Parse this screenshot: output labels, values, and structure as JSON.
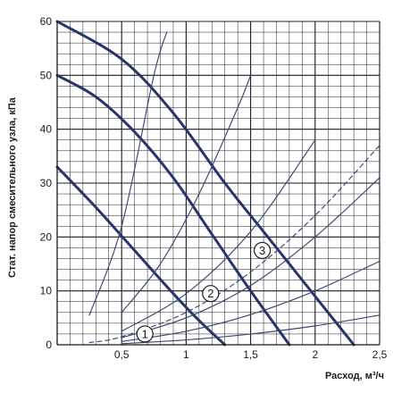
{
  "chart_data": {
    "type": "line",
    "title": "",
    "xlabel": "Расход, м³/ч",
    "ylabel": "Стат. напор смесительного узла, кПа",
    "xlim": [
      0,
      2.5
    ],
    "ylim": [
      0,
      60
    ],
    "grid": true,
    "x_ticks": [
      0.5,
      1,
      1.5,
      2,
      2.5
    ],
    "x_tick_labels": [
      "0,5",
      "1",
      "1,5",
      "2",
      "2,5"
    ],
    "y_ticks": [
      0,
      10,
      20,
      30,
      40,
      50,
      60
    ],
    "y_tick_labels": [
      "0",
      "10",
      "20",
      "30",
      "40",
      "50",
      "60"
    ],
    "series": [
      {
        "kind": "pump_curve",
        "x": [
          0,
          0.3,
          0.6,
          0.9,
          1.1,
          1.3
        ],
        "y": [
          33,
          25.5,
          17.5,
          9.5,
          4.5,
          0
        ]
      },
      {
        "kind": "pump_curve",
        "x": [
          0,
          0.3,
          0.6,
          0.9,
          1.2,
          1.5,
          1.8
        ],
        "y": [
          50,
          46,
          39.5,
          31,
          20.5,
          10,
          0
        ]
      },
      {
        "kind": "pump_curve",
        "x": [
          0,
          0.5,
          0.9,
          1.3,
          1.6,
          1.9,
          2.1,
          2.3
        ],
        "y": [
          60,
          53,
          43,
          30,
          21,
          12,
          6,
          0
        ]
      },
      {
        "kind": "system_curve",
        "dashed": false,
        "x": [
          0.25,
          0.5,
          0.75,
          0.85
        ],
        "y": [
          5.5,
          22,
          50,
          58
        ]
      },
      {
        "kind": "system_curve",
        "dashed": false,
        "x": [
          0.5,
          0.8,
          1.1,
          1.4,
          1.5
        ],
        "y": [
          6,
          15,
          28,
          44,
          50
        ]
      },
      {
        "kind": "system_curve",
        "dashed": false,
        "x": [
          0.5,
          1,
          1.5,
          2
        ],
        "y": [
          2.5,
          9.5,
          21,
          38
        ]
      },
      {
        "kind": "system_curve",
        "dashed": true,
        "x": [
          0.25,
          0.5,
          1,
          1.5,
          2,
          2.5
        ],
        "y": [
          0.4,
          1.5,
          6,
          13.5,
          24,
          37
        ]
      },
      {
        "kind": "system_curve",
        "dashed": false,
        "x": [
          0.5,
          1,
          1.5,
          2,
          2.5
        ],
        "y": [
          1.3,
          5,
          11,
          20,
          31
        ]
      },
      {
        "kind": "system_curve",
        "dashed": false,
        "x": [
          0.5,
          1,
          1.5,
          2,
          2.5
        ],
        "y": [
          0.6,
          2.5,
          5.6,
          10,
          15.5
        ]
      },
      {
        "kind": "system_curve",
        "dashed": false,
        "x": [
          0.5,
          1,
          1.5,
          2,
          2.5
        ],
        "y": [
          0.2,
          0.9,
          2,
          3.5,
          5.5
        ]
      }
    ],
    "annotations": [
      {
        "text": "1",
        "x": 0.68,
        "y": 2
      },
      {
        "text": "2",
        "x": 1.19,
        "y": 9.5
      },
      {
        "text": "3",
        "x": 1.59,
        "y": 17.5
      }
    ]
  },
  "colors": {
    "pump_curve": "#27356b",
    "system_curve": "#3d4675",
    "grid": "#1a1a1a",
    "text": "#1a1a1a"
  }
}
